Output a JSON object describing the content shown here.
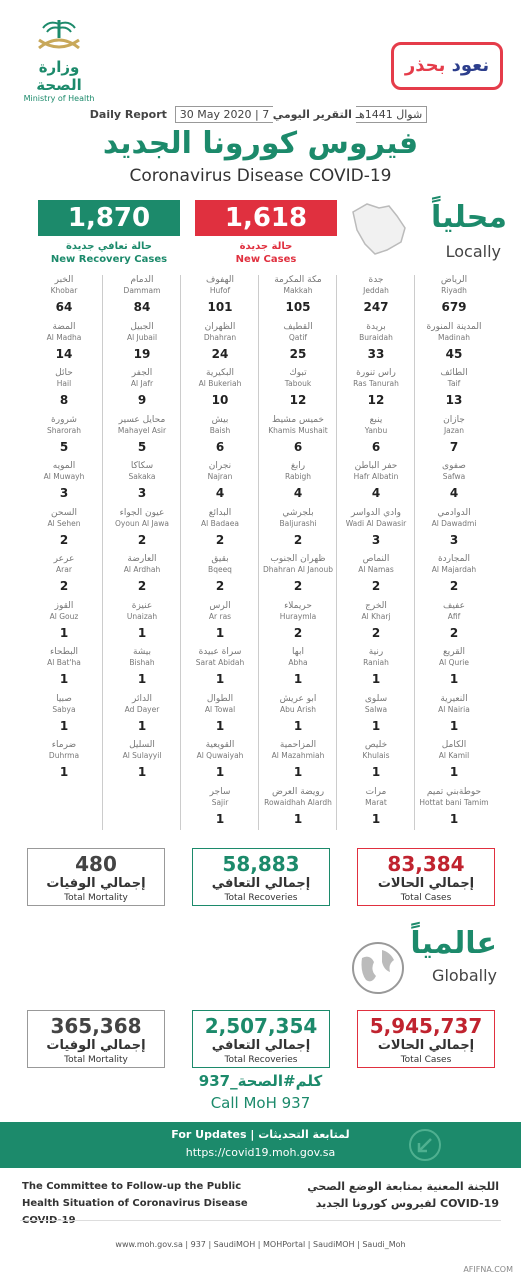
{
  "header": {
    "moh_ar": "وزارة الصحة",
    "moh_en": "Ministry of Health",
    "naood_1": "نعود",
    "naood_2": "بحذر",
    "daily_en": "Daily Report",
    "date": "30 May 2020 | 7 شوال 1441هـ",
    "daily_ar": "التقرير اليومي",
    "title_ar": "فيروس كورونا الجديد",
    "title_en": "Coronavirus Disease COVID-19"
  },
  "locally": {
    "title_ar": "محلياً",
    "title_en": "Locally",
    "recovery_value": "1,870",
    "recovery_ar": "حالة تعافي جديدة",
    "recovery_en": "New Recovery Cases",
    "new_value": "1,618",
    "new_ar": "حالة جديدة",
    "new_en": "New Cases"
  },
  "cities": [
    [
      {
        "ar": "الرياض",
        "en": "Riyadh",
        "n": "679"
      },
      {
        "ar": "المدينة المنورة",
        "en": "Madinah",
        "n": "45"
      },
      {
        "ar": "الطائف",
        "en": "Taif",
        "n": "13"
      },
      {
        "ar": "جازان",
        "en": "Jazan",
        "n": "7"
      },
      {
        "ar": "صفوى",
        "en": "Safwa",
        "n": "4"
      },
      {
        "ar": "الدوادمي",
        "en": "Al Dawadmi",
        "n": "3"
      },
      {
        "ar": "المجاردة",
        "en": "Al Majardah",
        "n": "2"
      },
      {
        "ar": "عفيف",
        "en": "Afif",
        "n": "2"
      },
      {
        "ar": "القريع",
        "en": "Al Qurie",
        "n": "1"
      },
      {
        "ar": "النعيرية",
        "en": "Al Nairia",
        "n": "1"
      },
      {
        "ar": "الكامل",
        "en": "Al Kamil",
        "n": "1"
      },
      {
        "ar": "حوطةبني تميم",
        "en": "Hottat bani Tamim",
        "n": "1"
      }
    ],
    [
      {
        "ar": "جدة",
        "en": "Jeddah",
        "n": "247"
      },
      {
        "ar": "بريدة",
        "en": "Buraidah",
        "n": "33"
      },
      {
        "ar": "راس تنورة",
        "en": "Ras Tanurah",
        "n": "12"
      },
      {
        "ar": "ينبع",
        "en": "Yanbu",
        "n": "6"
      },
      {
        "ar": "حفر الباطن",
        "en": "Hafr Albatin",
        "n": "4"
      },
      {
        "ar": "وادي الدواسر",
        "en": "Wadi Al Dawasir",
        "n": "3"
      },
      {
        "ar": "النماص",
        "en": "Al Namas",
        "n": "2"
      },
      {
        "ar": "الخرج",
        "en": "Al Kharj",
        "n": "2"
      },
      {
        "ar": "رنية",
        "en": "Raniah",
        "n": "1"
      },
      {
        "ar": "سلوى",
        "en": "Salwa",
        "n": "1"
      },
      {
        "ar": "خليص",
        "en": "Khulais",
        "n": "1"
      },
      {
        "ar": "مرات",
        "en": "Marat",
        "n": "1"
      }
    ],
    [
      {
        "ar": "مكة المكرمة",
        "en": "Makkah",
        "n": "105"
      },
      {
        "ar": "القطيف",
        "en": "Qatif",
        "n": "25"
      },
      {
        "ar": "تبوك",
        "en": "Tabouk",
        "n": "12"
      },
      {
        "ar": "خميس مشيط",
        "en": "Khamis Mushait",
        "n": "6"
      },
      {
        "ar": "رابغ",
        "en": "Rabigh",
        "n": "4"
      },
      {
        "ar": "بلجرشي",
        "en": "Baljurashi",
        "n": "2"
      },
      {
        "ar": "ظهران الجنوب",
        "en": "Dhahran Al Janoub",
        "n": "2"
      },
      {
        "ar": "حريملاء",
        "en": "Huraymla",
        "n": "2"
      },
      {
        "ar": "أبها",
        "en": "Abha",
        "n": "1"
      },
      {
        "ar": "أبو عريش",
        "en": "Abu Arish",
        "n": "1"
      },
      {
        "ar": "المزاحمية",
        "en": "Al Mazahmiah",
        "n": "1"
      },
      {
        "ar": "رويضة العرض",
        "en": "Rowaidhah Alardh",
        "n": "1"
      }
    ],
    [
      {
        "ar": "الهفوف",
        "en": "Hufof",
        "n": "101"
      },
      {
        "ar": "الظهران",
        "en": "Dhahran",
        "n": "24"
      },
      {
        "ar": "البكيرية",
        "en": "Al Bukeriah",
        "n": "10"
      },
      {
        "ar": "بيش",
        "en": "Baish",
        "n": "6"
      },
      {
        "ar": "نجران",
        "en": "Najran",
        "n": "4"
      },
      {
        "ar": "البدائع",
        "en": "Al Badaea",
        "n": "2"
      },
      {
        "ar": "بقيق",
        "en": "Bqeeq",
        "n": "2"
      },
      {
        "ar": "الرس",
        "en": "Ar ras",
        "n": "1"
      },
      {
        "ar": "سراة عبيدة",
        "en": "Sarat Abidah",
        "n": "1"
      },
      {
        "ar": "الطوال",
        "en": "Al Towal",
        "n": "1"
      },
      {
        "ar": "القويعية",
        "en": "Al Quwaiyah",
        "n": "1"
      },
      {
        "ar": "ساجر",
        "en": "Sajir",
        "n": "1"
      }
    ],
    [
      {
        "ar": "الدمام",
        "en": "Dammam",
        "n": "84"
      },
      {
        "ar": "الجبيل",
        "en": "Al Jubail",
        "n": "19"
      },
      {
        "ar": "الجفر",
        "en": "Al Jafr",
        "n": "9"
      },
      {
        "ar": "محايل عسير",
        "en": "Mahayel Asir",
        "n": "5"
      },
      {
        "ar": "سكاكا",
        "en": "Sakaka",
        "n": "3"
      },
      {
        "ar": "عيون الجواء",
        "en": "Oyoun Al Jawa",
        "n": "2"
      },
      {
        "ar": "العارضة",
        "en": "Al Ardhah",
        "n": "2"
      },
      {
        "ar": "عنيزة",
        "en": "Unaizah",
        "n": "1"
      },
      {
        "ar": "بيشة",
        "en": "Bishah",
        "n": "1"
      },
      {
        "ar": "الدائر",
        "en": "Ad Dayer",
        "n": "1"
      },
      {
        "ar": "السليل",
        "en": "Al Sulayyil",
        "n": "1"
      }
    ],
    [
      {
        "ar": "الخبر",
        "en": "Khobar",
        "n": "64"
      },
      {
        "ar": "المضة",
        "en": "Al Madha",
        "n": "14"
      },
      {
        "ar": "حائل",
        "en": "Hail",
        "n": "8"
      },
      {
        "ar": "شرورة",
        "en": "Sharorah",
        "n": "5"
      },
      {
        "ar": "المويه",
        "en": "Al Muwayh",
        "n": "3"
      },
      {
        "ar": "السحن",
        "en": "Al Sehen",
        "n": "2"
      },
      {
        "ar": "عرعر",
        "en": "Arar",
        "n": "2"
      },
      {
        "ar": "القوز",
        "en": "Al Gouz",
        "n": "1"
      },
      {
        "ar": "البطحاء",
        "en": "Al Bat'ha",
        "n": "1"
      },
      {
        "ar": "صبيا",
        "en": "Sabya",
        "n": "1"
      },
      {
        "ar": "ضرماء",
        "en": "Duhrma",
        "n": "1"
      }
    ]
  ],
  "local_totals": {
    "cases": {
      "n": "83,384",
      "ar": "إجمالي الحالات",
      "en": "Total Cases"
    },
    "recoveries": {
      "n": "58,883",
      "ar": "إجمالي التعافي",
      "en": "Total Recoveries"
    },
    "mortality": {
      "n": "480",
      "ar": "إجمالي الوفيات",
      "en": "Total Mortality"
    }
  },
  "globally": {
    "title_ar": "عالمياً",
    "title_en": "Globally",
    "cases": {
      "n": "5,945,737",
      "ar": "إجمالي الحالات",
      "en": "Total Cases"
    },
    "recoveries": {
      "n": "2,507,354",
      "ar": "إجمالي التعافي",
      "en": "Total Recoveries"
    },
    "mortality": {
      "n": "365,368",
      "ar": "إجمالي الوفيات",
      "en": "Total Mortality"
    }
  },
  "call": {
    "ar": "كلم#الصحة_937",
    "en": "Call MoH 937"
  },
  "updates": {
    "title": "For Updates | لمتابعة التحديثات",
    "url": "https://covid19.moh.gov.sa"
  },
  "committee": {
    "en": "The Committee to Follow-up the Public Health Situation of Coronavirus Disease COVID-19",
    "ar": "اللجنة المعنية بمتابعة الوضع الصحي لفيروس كورونا الجديد COVID-19"
  },
  "footer": "www.moh.gov.sa | 937 | SaudiMOH | MOHPortal | SaudiMOH | Saudi_Moh",
  "watermark": "AFIFNA.COM",
  "colors": {
    "green": "#1c8a6b",
    "red": "#e0303f"
  }
}
